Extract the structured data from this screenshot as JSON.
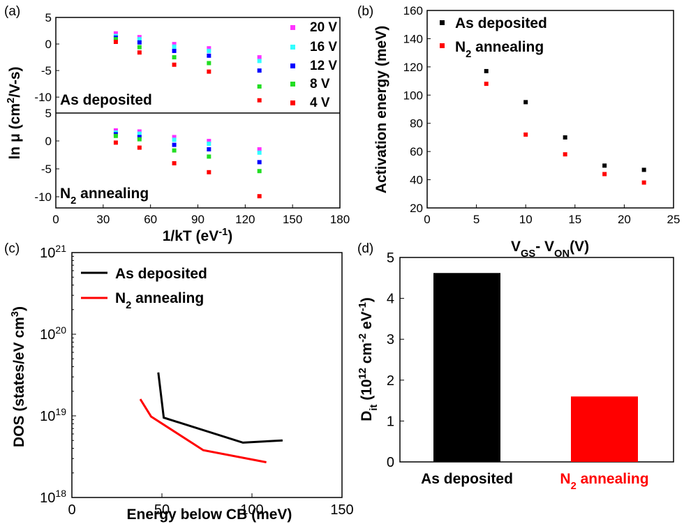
{
  "colors": {
    "v20": "#ff33ff",
    "v16": "#33ffff",
    "v12": "#0000ff",
    "v8": "#22dd22",
    "v4": "#ff0000",
    "as_deposited": "#000000",
    "n2_annealing": "#ff0000"
  },
  "chart_data": [
    {
      "id": "a",
      "panel_label": "(a)",
      "type": "scatter",
      "xlabel": "1/kT (eV",
      "xlabel_sup": "-1",
      "xlabel_end": ")",
      "ylabel": "ln μ (cm",
      "ylabel_sup": "2",
      "ylabel_end": "/V-s)",
      "xlim": [
        0,
        180
      ],
      "xticks": [
        0,
        30,
        60,
        90,
        120,
        150,
        180
      ],
      "legend_placement": "right",
      "legend": [
        "20 V",
        "16 V",
        "12 V",
        "8 V",
        "4 V"
      ],
      "subplots": [
        {
          "label": "As deposited",
          "ylim": [
            -13,
            5
          ],
          "yticks": [
            5,
            0,
            -5,
            -10
          ],
          "x": [
            38,
            53,
            75,
            97,
            129
          ],
          "series": [
            {
              "name": "20 V",
              "color_key": "v20",
              "values": [
                2.0,
                1.3,
                0.0,
                -0.8,
                -2.5
              ]
            },
            {
              "name": "16 V",
              "color_key": "v16",
              "values": [
                1.5,
                0.9,
                -0.5,
                -1.3,
                -3.2
              ]
            },
            {
              "name": "12 V",
              "color_key": "v12",
              "values": [
                1.2,
                0.3,
                -1.3,
                -2.2,
                -5.0
              ]
            },
            {
              "name": "8 V",
              "color_key": "v8",
              "values": [
                0.9,
                -0.6,
                -2.5,
                -3.6,
                -8.0
              ]
            },
            {
              "name": "4 V",
              "color_key": "v4",
              "values": [
                0.4,
                -1.6,
                -3.9,
                -5.2,
                -10.6
              ]
            }
          ]
        },
        {
          "label": "N",
          "label_sub": "2",
          "label_end": " annealing",
          "ylim": [
            -12,
            5
          ],
          "yticks": [
            5,
            0,
            -5,
            -10
          ],
          "x": [
            38,
            53,
            75,
            97,
            129
          ],
          "series": [
            {
              "name": "20 V",
              "color_key": "v20",
              "values": [
                1.9,
                1.7,
                0.7,
                0.0,
                -1.5
              ]
            },
            {
              "name": "16 V",
              "color_key": "v16",
              "values": [
                1.5,
                1.3,
                0.2,
                -0.5,
                -2.1
              ]
            },
            {
              "name": "12 V",
              "color_key": "v12",
              "values": [
                1.2,
                0.7,
                -0.7,
                -1.5,
                -3.8
              ]
            },
            {
              "name": "8 V",
              "color_key": "v8",
              "values": [
                0.9,
                0.3,
                -1.7,
                -2.8,
                -5.4
              ]
            },
            {
              "name": "4 V",
              "color_key": "v4",
              "values": [
                -0.3,
                -1.2,
                -4.0,
                -5.6,
                -9.9
              ]
            }
          ]
        }
      ]
    },
    {
      "id": "b",
      "panel_label": "(b)",
      "type": "scatter",
      "xlabel": "V",
      "xlabel_sub1": "GS",
      "xlabel_mid": "- V",
      "xlabel_sub2": "ON",
      "xlabel_end": "(V)",
      "ylabel": "Activation energy (meV)",
      "xlim": [
        0,
        25
      ],
      "ylim": [
        20,
        160
      ],
      "xticks": [
        0,
        5,
        10,
        15,
        20,
        25
      ],
      "yticks": [
        20,
        40,
        60,
        80,
        100,
        120,
        140,
        160
      ],
      "legend_placement": "top-right",
      "x": [
        6,
        10,
        14,
        18,
        22
      ],
      "series": [
        {
          "name": "As deposited",
          "color_key": "as_deposited",
          "values": [
            117,
            95,
            70,
            50,
            47
          ]
        },
        {
          "name": "N",
          "name_sub": "2",
          "name_end": " annealing",
          "color_key": "n2_annealing",
          "values": [
            108,
            72,
            58,
            44,
            38
          ]
        }
      ]
    },
    {
      "id": "c",
      "panel_label": "(c)",
      "type": "line",
      "xlabel": "Energy below CB (meV)",
      "ylabel": "DOS (states/eV cm",
      "ylabel_sup": "3",
      "ylabel_end": ")",
      "xlim": [
        0,
        150
      ],
      "ylim_log10": [
        18,
        21
      ],
      "yscale": "log",
      "xticks": [
        0,
        50,
        100,
        150
      ],
      "yticks_exp": [
        18,
        19,
        20,
        21
      ],
      "ytick_base": "10",
      "legend_placement": "top-left",
      "series": [
        {
          "name": "As deposited",
          "color_key": "as_deposited",
          "points": [
            [
              48,
              3.4e+19
            ],
            [
              51,
              9.5e+18
            ],
            [
              95,
              4.7e+18
            ],
            [
              117,
              5e+18
            ]
          ]
        },
        {
          "name": "N",
          "name_sub": "2",
          "name_end": " annealing",
          "color_key": "n2_annealing",
          "points": [
            [
              38,
              1.6e+19
            ],
            [
              44,
              9.8e+18
            ],
            [
              73,
              3.8e+18
            ],
            [
              108,
              2.7e+18
            ]
          ]
        }
      ]
    },
    {
      "id": "d",
      "panel_label": "(d)",
      "type": "bar",
      "ylabel": "D",
      "ylabel_sub": "it",
      "ylabel_mid": " (10",
      "ylabel_sup1": "12",
      "ylabel_mid2": " cm",
      "ylabel_sup2": "-2",
      "ylabel_mid3": " eV",
      "ylabel_sup3": "-1",
      "ylabel_end": ")",
      "ylim": [
        0,
        5
      ],
      "yticks": [
        0,
        1,
        2,
        3,
        4,
        5
      ],
      "categories": [
        "As deposited",
        "N2 annealing"
      ],
      "category_labels": [
        {
          "text": "As deposited",
          "color_key": "as_deposited"
        },
        {
          "text": "N",
          "sub": "2",
          "end": " annealing",
          "color_key": "n2_annealing"
        }
      ],
      "values": [
        4.62,
        1.6
      ],
      "bar_color_keys": [
        "as_deposited",
        "n2_annealing"
      ]
    }
  ]
}
